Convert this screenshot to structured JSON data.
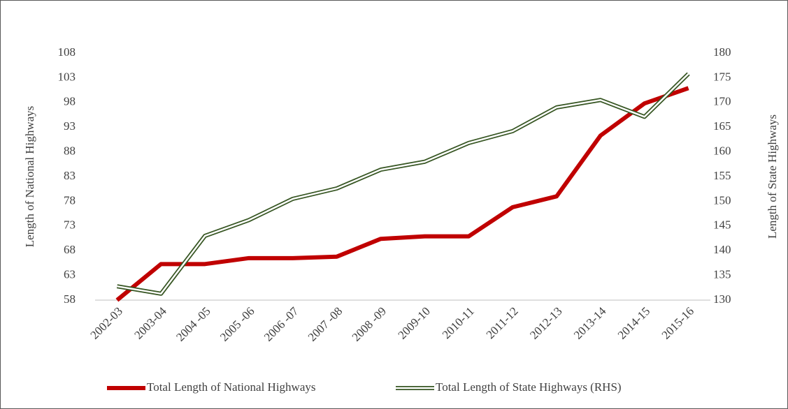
{
  "chart_data": {
    "type": "line",
    "y_label": "Length of National Highways",
    "y2_label": "Length of State Highways",
    "categories": [
      "2002-03",
      "2003-04",
      "2004 -05",
      "2005 -06",
      "2006 -07",
      "2007 -08",
      "2008 -09",
      "2009-10",
      "2010-11",
      "2011-12",
      "2012-13",
      "2013-14",
      "2014-15",
      "2015-16"
    ],
    "series": [
      {
        "name": "Total Length of National Highways",
        "color": "#c00000",
        "axis": "y",
        "values": [
          58,
          65.3,
          65.3,
          66.5,
          66.5,
          66.8,
          70.4,
          70.9,
          70.9,
          76.8,
          79.0,
          91.3,
          97.8,
          100.9
        ]
      },
      {
        "name": "Total Length of State Highways (RHS)",
        "color": "#375623",
        "axis": "y2",
        "values": [
          132.8,
          131.3,
          143.0,
          146.2,
          150.5,
          152.6,
          156.4,
          158.0,
          161.8,
          164.2,
          169.0,
          170.5,
          167.1,
          175.8
        ]
      }
    ],
    "ylim": [
      58,
      108
    ],
    "yticks": [
      58,
      63,
      68,
      73,
      78,
      83,
      88,
      93,
      98,
      103,
      108
    ],
    "y2lim": [
      130,
      180
    ],
    "y2ticks": [
      130,
      135,
      140,
      145,
      150,
      155,
      160,
      165,
      170,
      175,
      180
    ],
    "grid": false,
    "legend": "bottom"
  }
}
